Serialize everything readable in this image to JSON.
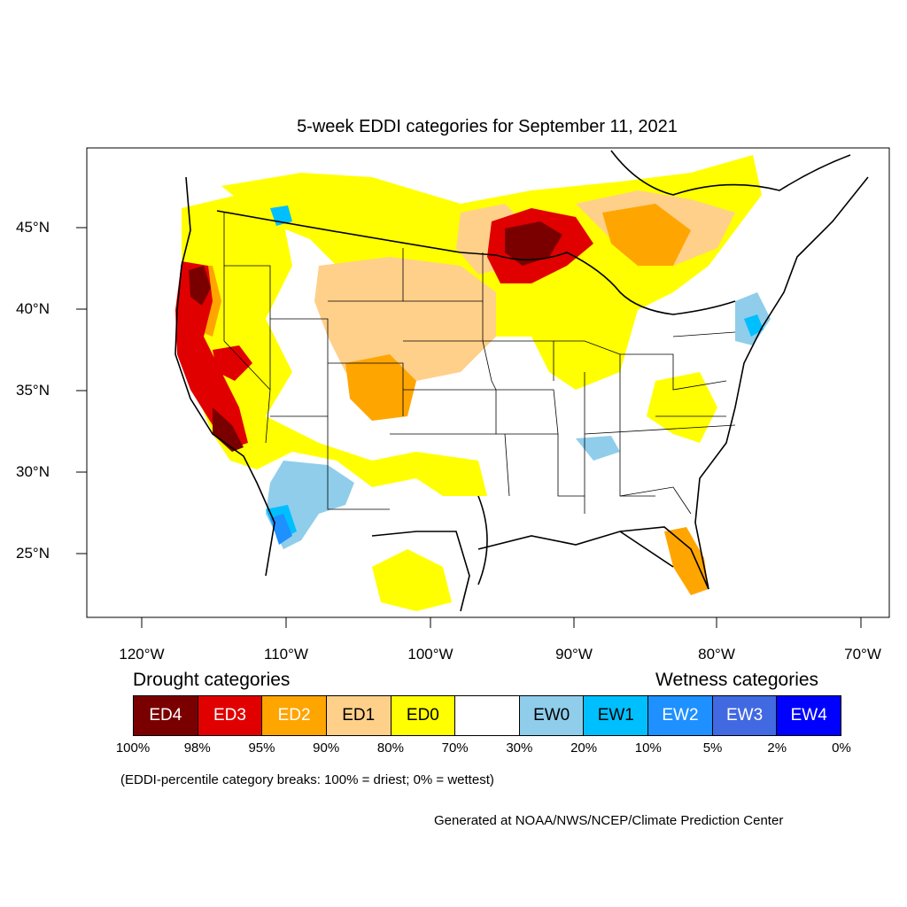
{
  "title": "5-week EDDI categories for September 11, 2021",
  "lat_labels": [
    "45°N",
    "40°N",
    "35°N",
    "30°N",
    "25°N"
  ],
  "lon_labels": [
    "120°W",
    "110°W",
    "100°W",
    "90°W",
    "80°W",
    "70°W"
  ],
  "drought_heading": "Drought categories",
  "wetness_heading": "Wetness categories",
  "legend": [
    {
      "label": "ED4",
      "color": "#7a0000",
      "text_color": "#ffffff"
    },
    {
      "label": "ED3",
      "color": "#e00000",
      "text_color": "#ffffff"
    },
    {
      "label": "ED2",
      "color": "#ffa500",
      "text_color": "#ffffff"
    },
    {
      "label": "ED1",
      "color": "#ffd08a",
      "text_color": "#000000"
    },
    {
      "label": "ED0",
      "color": "#ffff00",
      "text_color": "#000000"
    },
    {
      "label": "",
      "color": "#ffffff",
      "text_color": "#000000"
    },
    {
      "label": "EW0",
      "color": "#8fcdeb",
      "text_color": "#000000"
    },
    {
      "label": "EW1",
      "color": "#00bfff",
      "text_color": "#000000"
    },
    {
      "label": "EW2",
      "color": "#1e90ff",
      "text_color": "#ffffff"
    },
    {
      "label": "EW3",
      "color": "#4169e1",
      "text_color": "#ffffff"
    },
    {
      "label": "EW4",
      "color": "#0000ff",
      "text_color": "#ffffff"
    }
  ],
  "percent_breaks": [
    "100%",
    "98%",
    "95%",
    "90%",
    "80%",
    "70%",
    "30%",
    "20%",
    "10%",
    "5%",
    "2%",
    "0%"
  ],
  "note": "(EDDI-percentile category breaks: 100% = driest; 0% = wettest)",
  "credit": "Generated at NOAA/NWS/NCEP/Climate Prediction Center"
}
